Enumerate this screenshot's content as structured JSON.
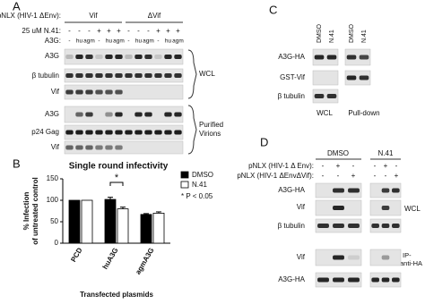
{
  "panel_a": {
    "label": "A",
    "plasmid": "pNLX (HIV-1 ΔEnv):",
    "groups": [
      "Vif",
      "ΔVif"
    ],
    "n41_label": "25 uM N.41:",
    "n41": [
      "-",
      "-",
      "-",
      "+",
      "+",
      "+",
      "-",
      "-",
      "-",
      "+",
      "+",
      "+"
    ],
    "a3g_label": "A3G:",
    "a3g": [
      "-",
      "hu",
      "agm",
      "-",
      "hu",
      "agm",
      "-",
      "hu",
      "agm",
      "-",
      "hu",
      "agm"
    ],
    "wcl_blots": [
      "A3G",
      "β tubulin",
      "Vif"
    ],
    "wcl": "WCL",
    "virion_blots": [
      "A3G",
      "p24 Gag",
      "Vif"
    ],
    "virions": [
      "Purified",
      "Virions"
    ]
  },
  "chart_data": {
    "type": "bar",
    "label": "B",
    "title": "Single round infectivity",
    "y_label": [
      "% Infection",
      "of untreated control"
    ],
    "x_label": "Transfected plasmids",
    "categories": [
      "PCD",
      "huA3G",
      "agmA3G"
    ],
    "series": [
      {
        "name": "DMSO",
        "color": "#000000",
        "values": [
          100,
          102,
          67
        ],
        "errors": [
          0,
          5,
          2
        ]
      },
      {
        "name": "N.41",
        "color": "#ffffff",
        "values": [
          100,
          80,
          70
        ],
        "errors": [
          0,
          4,
          3
        ]
      }
    ],
    "ylim": [
      0,
      150
    ],
    "yticks": [
      0,
      50,
      100,
      150
    ],
    "annotation": "*",
    "significance": "* P < 0.05"
  },
  "panel_c": {
    "label": "C",
    "lanes": [
      "DMSO",
      "N.41",
      "DMSO",
      "N.41"
    ],
    "blots": [
      "A3G-HA",
      "GST-Vif",
      "β tubulin"
    ],
    "groups": [
      "WCL",
      "Pull-down"
    ]
  },
  "panel_d": {
    "label": "D",
    "treatments": [
      "DMSO",
      "N.41"
    ],
    "rows": [
      {
        "label": "pNLX (HIV-1 Δ Env):",
        "signs": [
          "-",
          "+",
          "-",
          "-",
          "+",
          "-"
        ]
      },
      {
        "label": "pNLX (HIV-1 ΔEnvΔVif):",
        "signs": [
          "-",
          "-",
          "+",
          "-",
          "-",
          "+"
        ]
      }
    ],
    "wcl_blots": [
      "A3G-HA",
      "Vif",
      "β tubulin"
    ],
    "wcl": "WCL",
    "ip_blots": [
      "Vif",
      "A3G-HA"
    ],
    "ip": [
      "IP-",
      "anti-HA"
    ]
  }
}
